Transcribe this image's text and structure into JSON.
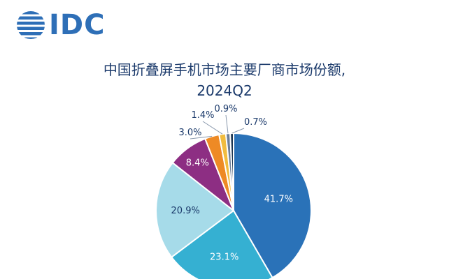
{
  "logo": {
    "text": "IDC",
    "color": "#2e6fb7"
  },
  "chart_data": {
    "type": "pie",
    "title": "中国折叠屏手机市场主要厂商市场份额,",
    "subtitle": "2024Q2",
    "values": [
      41.7,
      23.1,
      20.9,
      8.4,
      3.0,
      1.4,
      0.9,
      0.7
    ],
    "labels": [
      "41.7%",
      "23.1%",
      "20.9%",
      "8.4%",
      "3.0%",
      "1.4%",
      "0.9%",
      "0.7%"
    ],
    "colors": [
      "#2a72b8",
      "#35b0d2",
      "#a6dbe9",
      "#8d2e83",
      "#ee8a25",
      "#f1bc3e",
      "#6d7f98",
      "#1a3450"
    ],
    "start_angle_deg": 0,
    "direction": "clockwise"
  }
}
